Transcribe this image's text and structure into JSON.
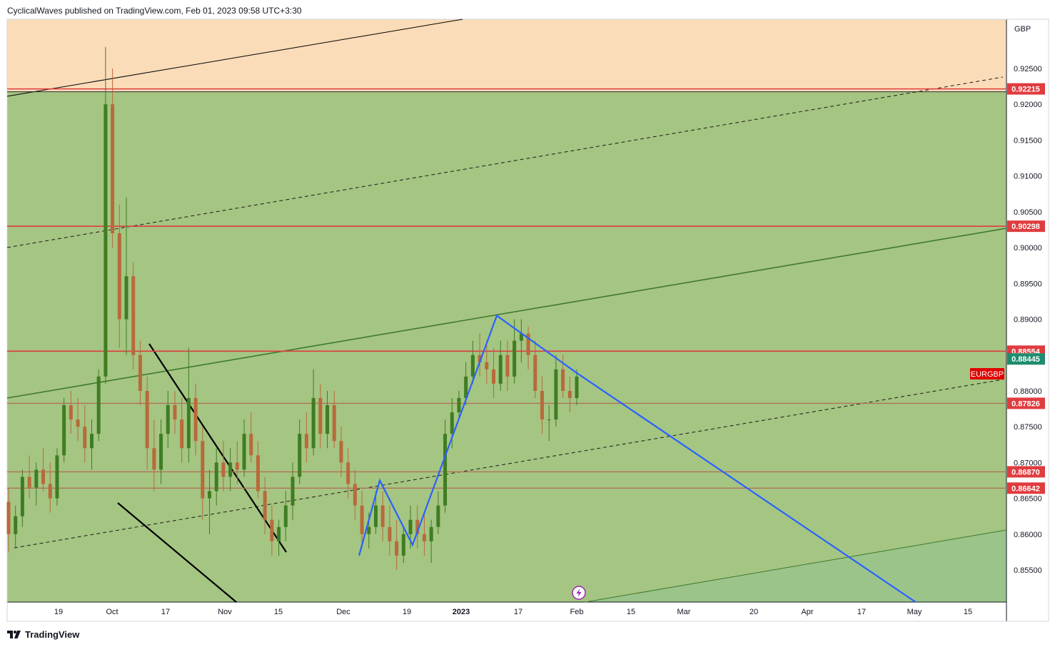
{
  "header": {
    "published_text": "CyclicalWaves published on TradingView.com, Feb 01, 2023 09:58 UTC+3:30"
  },
  "footer": {
    "brand": "TradingView",
    "logo_icon": "tradingview-logo-icon"
  },
  "colors": {
    "upper_zone": "#fbdcb8",
    "channel_zone": "#a5c582",
    "lower_zone": "#9bc48a",
    "level_red": "#e03c40",
    "level_brown": "#b0725a",
    "blue_wave": "#2962ff",
    "channel_line": "#3d7a2e",
    "last_price": "#1e8c6e",
    "symbol_tag": "#e00000"
  },
  "chart_data": {
    "type": "candlestick",
    "symbol": "EURGBP",
    "currency": "GBP",
    "y_ticks": [
      "0.92500",
      "0.92000",
      "0.91500",
      "0.91000",
      "0.90500",
      "0.90000",
      "0.89500",
      "0.89000",
      "0.88000",
      "0.87500",
      "0.87000",
      "0.86500",
      "0.86000",
      "0.85500"
    ],
    "x_ticks": [
      "19",
      "Oct",
      "17",
      "Nov",
      "15",
      "Dec",
      "19",
      "2023",
      "17",
      "Feb",
      "15",
      "Mar",
      "20",
      "Apr",
      "17",
      "May",
      "15"
    ],
    "price_levels": [
      {
        "label": "0.92215",
        "value": 0.92215,
        "style": "red"
      },
      {
        "label": "0.90298",
        "value": 0.90298,
        "style": "red"
      },
      {
        "label": "0.88554",
        "value": 0.88554,
        "style": "red"
      },
      {
        "label": "0.87826",
        "value": 0.87826,
        "style": "brown"
      },
      {
        "label": "0.86870",
        "value": 0.8687,
        "style": "brown"
      },
      {
        "label": "0.86642",
        "value": 0.86642,
        "style": "brown"
      }
    ],
    "last_price": {
      "label": "0.88445",
      "value": 0.88445
    },
    "symbol_tag": "EURGBP",
    "candles_ohlc": [
      [
        0.8645,
        0.8665,
        0.8575,
        0.86
      ],
      [
        0.86,
        0.864,
        0.858,
        0.8625
      ],
      [
        0.8625,
        0.869,
        0.861,
        0.868
      ],
      [
        0.868,
        0.871,
        0.865,
        0.8665
      ],
      [
        0.8665,
        0.87,
        0.864,
        0.869
      ],
      [
        0.869,
        0.872,
        0.866,
        0.867
      ],
      [
        0.867,
        0.87,
        0.863,
        0.865
      ],
      [
        0.865,
        0.872,
        0.864,
        0.871
      ],
      [
        0.871,
        0.879,
        0.87,
        0.878
      ],
      [
        0.878,
        0.88,
        0.874,
        0.876
      ],
      [
        0.876,
        0.879,
        0.873,
        0.875
      ],
      [
        0.875,
        0.878,
        0.87,
        0.872
      ],
      [
        0.872,
        0.876,
        0.869,
        0.874
      ],
      [
        0.874,
        0.883,
        0.873,
        0.882
      ],
      [
        0.882,
        0.928,
        0.881,
        0.92
      ],
      [
        0.92,
        0.925,
        0.9,
        0.902
      ],
      [
        0.902,
        0.906,
        0.886,
        0.89
      ],
      [
        0.89,
        0.907,
        0.885,
        0.896
      ],
      [
        0.896,
        0.898,
        0.883,
        0.885
      ],
      [
        0.885,
        0.887,
        0.878,
        0.88
      ],
      [
        0.88,
        0.882,
        0.869,
        0.872
      ],
      [
        0.872,
        0.876,
        0.866,
        0.869
      ],
      [
        0.869,
        0.876,
        0.867,
        0.874
      ],
      [
        0.874,
        0.88,
        0.872,
        0.878
      ],
      [
        0.878,
        0.88,
        0.874,
        0.876
      ],
      [
        0.876,
        0.879,
        0.87,
        0.872
      ],
      [
        0.872,
        0.886,
        0.87,
        0.879
      ],
      [
        0.879,
        0.881,
        0.871,
        0.873
      ],
      [
        0.873,
        0.875,
        0.862,
        0.865
      ],
      [
        0.865,
        0.869,
        0.86,
        0.866
      ],
      [
        0.866,
        0.872,
        0.864,
        0.87
      ],
      [
        0.87,
        0.873,
        0.866,
        0.868
      ],
      [
        0.868,
        0.872,
        0.866,
        0.87
      ],
      [
        0.87,
        0.873,
        0.867,
        0.869
      ],
      [
        0.869,
        0.876,
        0.868,
        0.874
      ],
      [
        0.874,
        0.877,
        0.87,
        0.871
      ],
      [
        0.871,
        0.873,
        0.865,
        0.866
      ],
      [
        0.866,
        0.868,
        0.86,
        0.862
      ],
      [
        0.862,
        0.864,
        0.857,
        0.859
      ],
      [
        0.859,
        0.862,
        0.857,
        0.861
      ],
      [
        0.861,
        0.866,
        0.859,
        0.864
      ],
      [
        0.864,
        0.87,
        0.862,
        0.868
      ],
      [
        0.868,
        0.876,
        0.867,
        0.874
      ],
      [
        0.874,
        0.877,
        0.87,
        0.872
      ],
      [
        0.872,
        0.883,
        0.871,
        0.879
      ],
      [
        0.879,
        0.881,
        0.872,
        0.874
      ],
      [
        0.874,
        0.88,
        0.872,
        0.878
      ],
      [
        0.878,
        0.88,
        0.872,
        0.873
      ],
      [
        0.873,
        0.875,
        0.868,
        0.87
      ],
      [
        0.87,
        0.872,
        0.865,
        0.867
      ],
      [
        0.867,
        0.869,
        0.862,
        0.864
      ],
      [
        0.864,
        0.866,
        0.858,
        0.86
      ],
      [
        0.86,
        0.863,
        0.858,
        0.861
      ],
      [
        0.861,
        0.866,
        0.86,
        0.864
      ],
      [
        0.864,
        0.866,
        0.859,
        0.861
      ],
      [
        0.861,
        0.864,
        0.857,
        0.859
      ],
      [
        0.859,
        0.862,
        0.855,
        0.857
      ],
      [
        0.857,
        0.861,
        0.856,
        0.86
      ],
      [
        0.86,
        0.864,
        0.858,
        0.862
      ],
      [
        0.862,
        0.864,
        0.858,
        0.86
      ],
      [
        0.86,
        0.863,
        0.857,
        0.859
      ],
      [
        0.859,
        0.862,
        0.856,
        0.861
      ],
      [
        0.861,
        0.866,
        0.86,
        0.864
      ],
      [
        0.864,
        0.876,
        0.863,
        0.874
      ],
      [
        0.874,
        0.879,
        0.872,
        0.877
      ],
      [
        0.877,
        0.88,
        0.876,
        0.879
      ],
      [
        0.879,
        0.884,
        0.878,
        0.882
      ],
      [
        0.882,
        0.887,
        0.881,
        0.885
      ],
      [
        0.885,
        0.888,
        0.882,
        0.884
      ],
      [
        0.884,
        0.887,
        0.881,
        0.883
      ],
      [
        0.883,
        0.886,
        0.879,
        0.881
      ],
      [
        0.881,
        0.887,
        0.88,
        0.885
      ],
      [
        0.885,
        0.887,
        0.88,
        0.882
      ],
      [
        0.882,
        0.89,
        0.881,
        0.887
      ],
      [
        0.887,
        0.89,
        0.884,
        0.888
      ],
      [
        0.888,
        0.889,
        0.883,
        0.885
      ],
      [
        0.885,
        0.887,
        0.879,
        0.88
      ],
      [
        0.88,
        0.882,
        0.874,
        0.876
      ],
      [
        0.876,
        0.878,
        0.873,
        0.876
      ],
      [
        0.876,
        0.885,
        0.875,
        0.883
      ],
      [
        0.883,
        0.885,
        0.879,
        0.88
      ],
      [
        0.88,
        0.882,
        0.877,
        0.879
      ],
      [
        0.879,
        0.883,
        0.878,
        0.882
      ]
    ],
    "drawings": {
      "blue_wave_points": [
        [
          "Dec",
          0.857
        ],
        [
          "Dec",
          0.8675
        ],
        [
          "Dec",
          0.8585
        ],
        [
          "2023",
          0.8905
        ],
        [
          "Feb",
          0.8825
        ],
        [
          "May",
          0.8505
        ]
      ],
      "annotation": "lightning-icon"
    },
    "grid": false,
    "legend": "none"
  }
}
